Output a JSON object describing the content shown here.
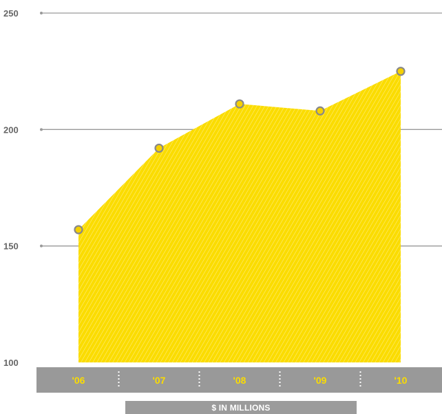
{
  "chart_data": {
    "type": "area",
    "categories": [
      "'06",
      "'07",
      "'08",
      "'09",
      "'10"
    ],
    "values": [
      157,
      192,
      211,
      208,
      225
    ],
    "ylim": [
      100,
      250
    ],
    "yticks": [
      100,
      150,
      200,
      250
    ],
    "grid": true,
    "unit_label": "$ IN MILLIONS",
    "colors": {
      "fill": "#fbdc00",
      "stripe": "#ffffff",
      "marker_fill": "#f5d000",
      "marker_stroke": "#888888",
      "grid": "#999999",
      "axis_bar": "#999999",
      "category_text": "#fbdc00",
      "tick_text": "#666666"
    }
  }
}
